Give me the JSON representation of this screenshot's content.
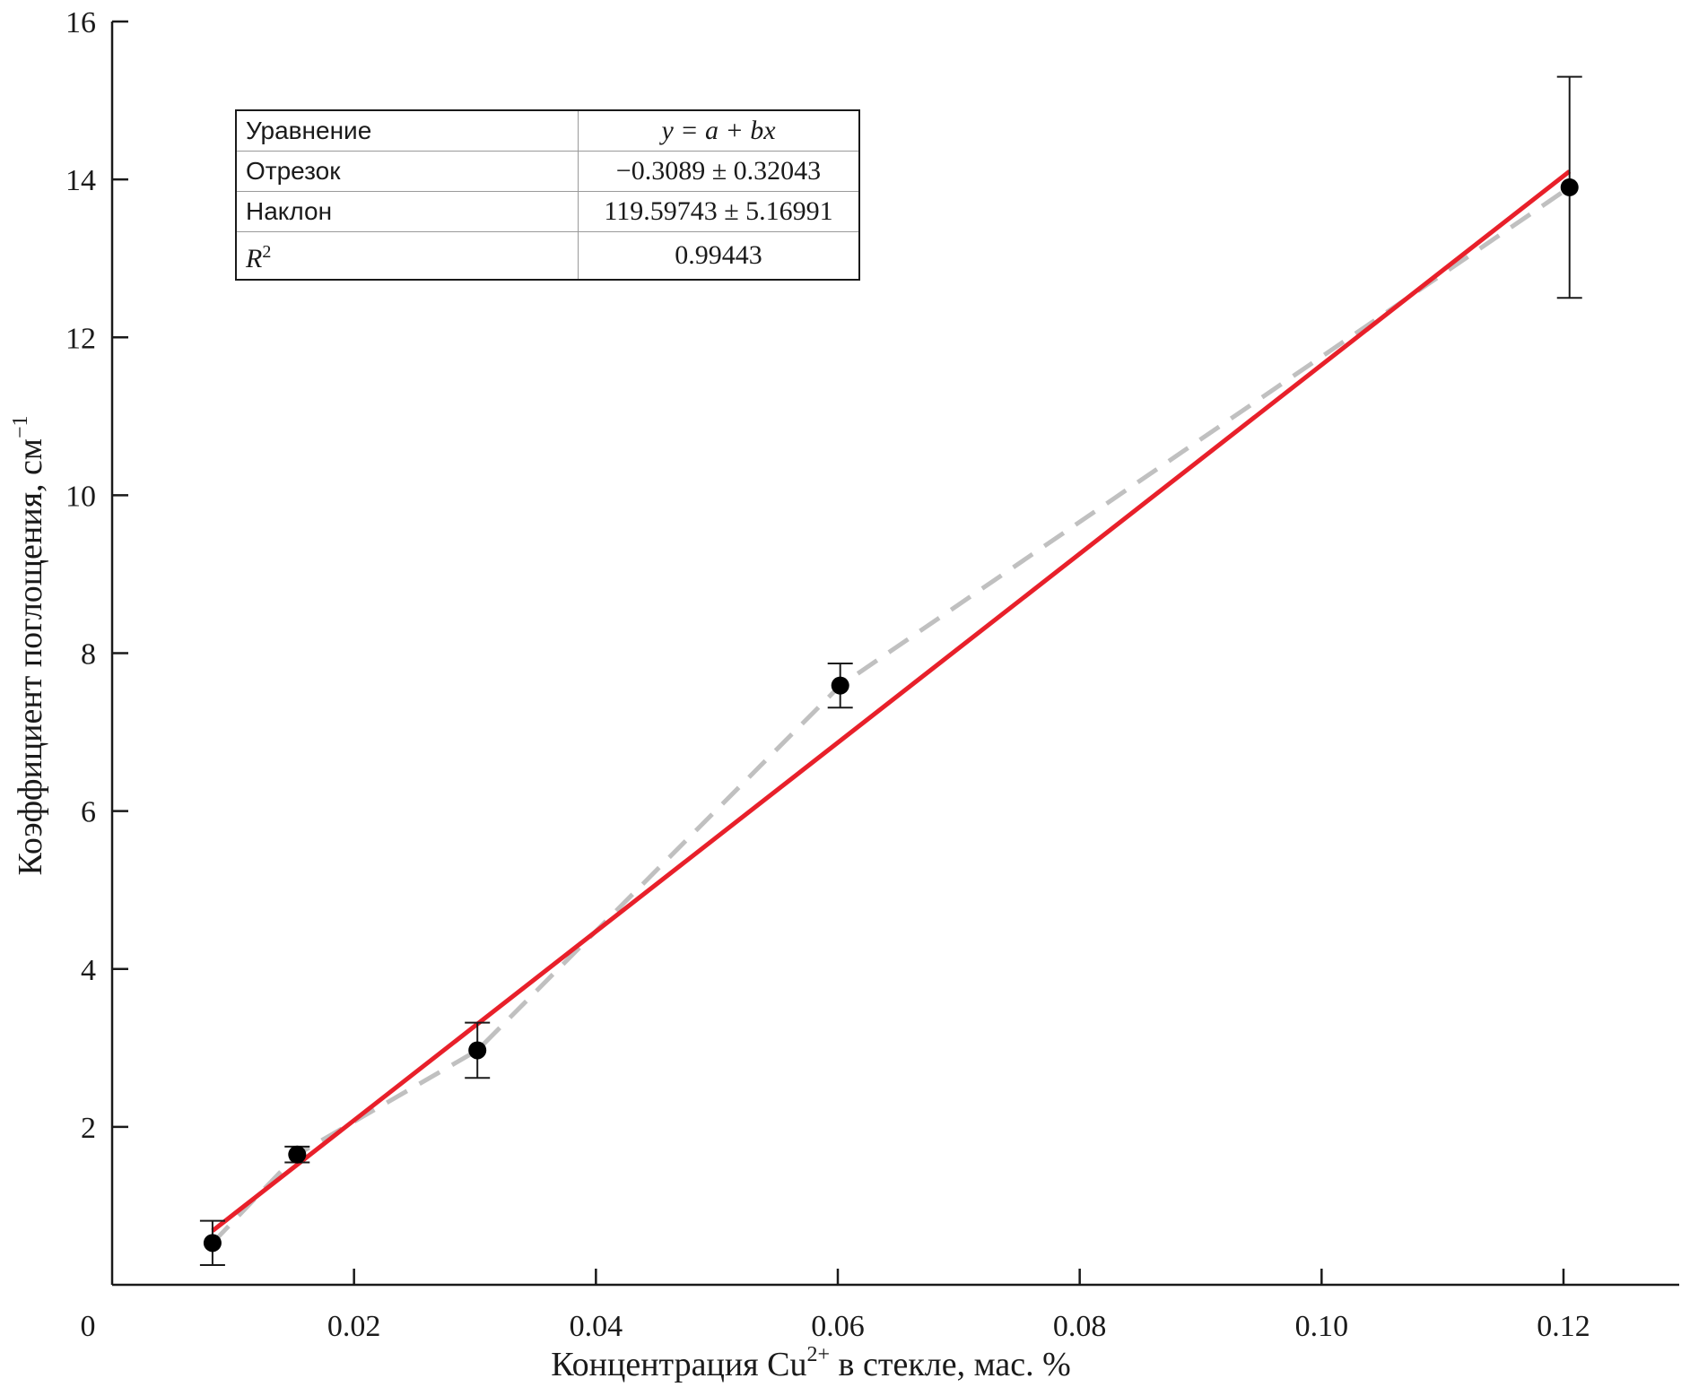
{
  "chart_data": {
    "type": "scatter",
    "xlabel": "Концентрация Cu",
    "xlabel_sup": "2+",
    "xlabel_suffix": " в стекле, мас. %",
    "ylabel": "Коэффициент поглощения, см",
    "ylabel_sup": "−1",
    "xlim": [
      0,
      0.13
    ],
    "ylim": [
      0,
      16
    ],
    "x_ticks": [
      0.02,
      0.04,
      0.06,
      0.08,
      0.1,
      0.12
    ],
    "x_tick_labels": [
      "0.02",
      "0.04",
      "0.06",
      "0.08",
      "0.10",
      "0.12"
    ],
    "y_ticks": [
      2,
      4,
      6,
      8,
      10,
      12,
      14,
      16
    ],
    "y_tick_labels": [
      "2",
      "4",
      "6",
      "8",
      "10",
      "12",
      "14",
      "16"
    ],
    "origin_label": "0",
    "points": [
      {
        "x": 0.0083,
        "y": 0.53,
        "err": 0.28
      },
      {
        "x": 0.0153,
        "y": 1.65,
        "err": 0.1
      },
      {
        "x": 0.0302,
        "y": 2.97,
        "err": 0.35
      },
      {
        "x": 0.0602,
        "y": 7.59,
        "err": 0.28
      },
      {
        "x": 0.1205,
        "y": 13.9,
        "err": 1.4
      }
    ],
    "fit_line": {
      "x": [
        0.0083,
        0.1205
      ],
      "color": "#e8202a"
    },
    "dashed_line_color": "#c0c0c0",
    "marker_color": "#000000",
    "grid": false,
    "fit_table": {
      "rows": [
        {
          "label": "Уравнение",
          "value": "y = a + bx"
        },
        {
          "label": "Отрезок",
          "value": "−0.3089 ± 0.32043"
        },
        {
          "label": "Наклон",
          "value": "119.59743 ± 5.16991"
        },
        {
          "label": "R",
          "label_sup": "2",
          "value": "0.99443"
        }
      ],
      "intercept": -0.3089,
      "slope": 119.59743
    }
  }
}
